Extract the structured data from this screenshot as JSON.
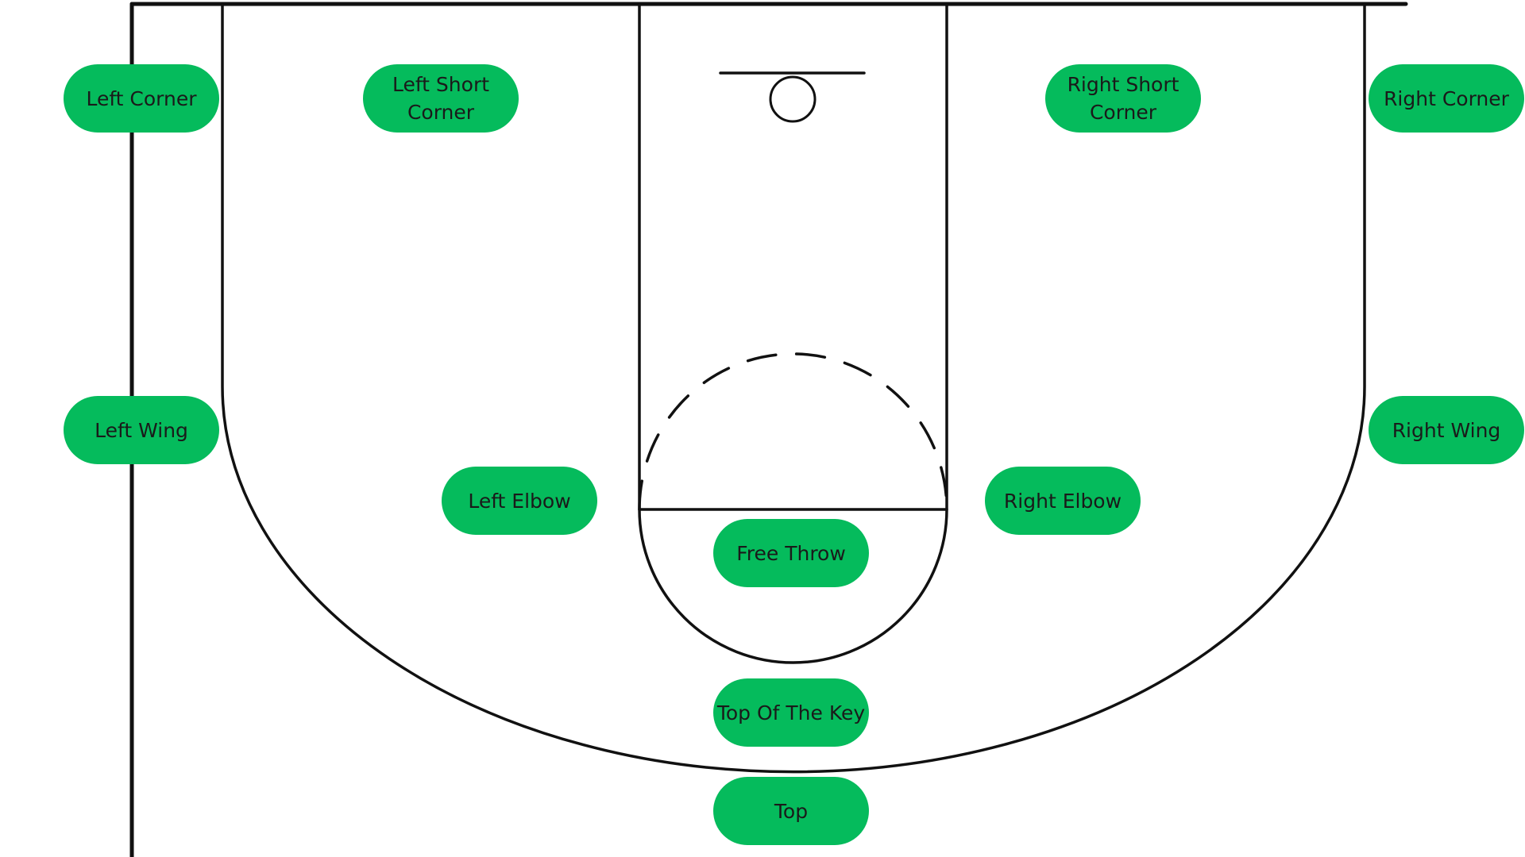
{
  "colors": {
    "spot_fill": "#05bb5c",
    "line": "#111111",
    "background": "#ffffff"
  },
  "spots": {
    "left_corner": "Left Corner",
    "left_short_corner": "Left Short\nCorner",
    "right_short_corner": "Right Short\nCorner",
    "right_corner": "Right Corner",
    "left_wing": "Left Wing",
    "right_wing": "Right Wing",
    "left_elbow": "Left Elbow",
    "right_elbow": "Right Elbow",
    "free_throw": "Free Throw",
    "top_of_the_key": "Top Of The Key",
    "top": "Top"
  }
}
